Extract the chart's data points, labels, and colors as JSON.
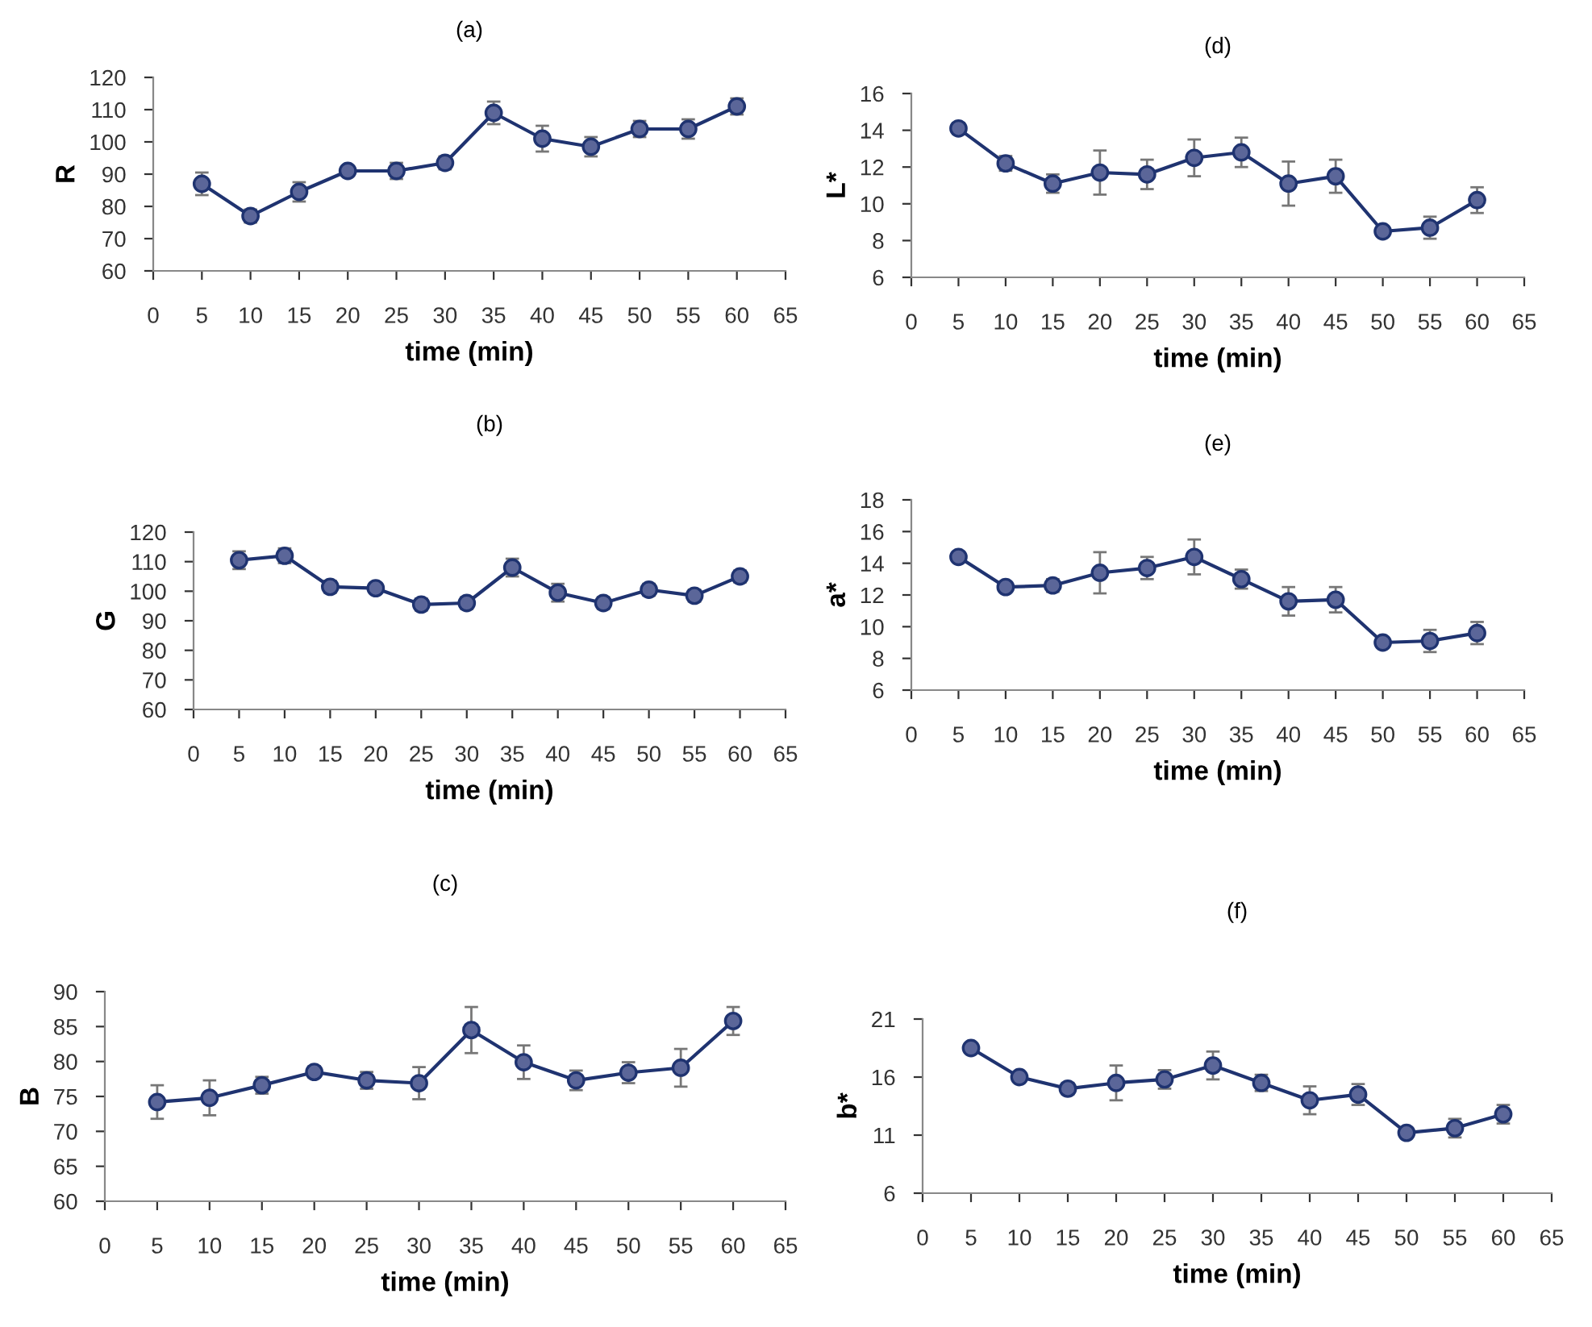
{
  "chart_data": [
    {
      "type": "line",
      "title": "(a)",
      "xlabel": "time (min)",
      "ylabel": "R",
      "x": [
        5,
        10,
        15,
        20,
        25,
        30,
        35,
        40,
        45,
        50,
        55,
        60
      ],
      "series": [
        {
          "color": "#1f3370",
          "values": [
            87,
            77,
            84.5,
            91,
            91,
            93.5,
            109,
            101,
            98.5,
            104,
            104,
            111
          ],
          "errors": [
            3.5,
            2,
            3,
            1.5,
            2.5,
            2,
            3.5,
            4,
            3,
            2.5,
            3,
            2.5
          ]
        }
      ],
      "xlim": [
        0,
        65
      ],
      "xticks": [
        0,
        5,
        10,
        15,
        20,
        25,
        30,
        35,
        40,
        45,
        50,
        55,
        60,
        65
      ],
      "ylim": [
        60,
        120
      ],
      "yticks": [
        60,
        70,
        80,
        90,
        100,
        110,
        120
      ],
      "marker": "circle",
      "line_style": "solid",
      "grid": false
    },
    {
      "type": "line",
      "title": "(b)",
      "xlabel": "time (min)",
      "ylabel": "G",
      "x": [
        5,
        10,
        15,
        20,
        25,
        30,
        35,
        40,
        45,
        50,
        55,
        60
      ],
      "series": [
        {
          "color": "#1f3370",
          "values": [
            110.5,
            112,
            101.5,
            101,
            95.5,
            96,
            108,
            99.5,
            96,
            100.5,
            98.5,
            105
          ],
          "errors": [
            3,
            2.5,
            2,
            1.5,
            2,
            2,
            3,
            3,
            2,
            2,
            2,
            2
          ]
        }
      ],
      "xlim": [
        0,
        65
      ],
      "xticks": [
        0,
        5,
        10,
        15,
        20,
        25,
        30,
        35,
        40,
        45,
        50,
        55,
        60,
        65
      ],
      "ylim": [
        60,
        120
      ],
      "yticks": [
        60,
        70,
        80,
        90,
        100,
        110,
        120
      ],
      "marker": "circle",
      "line_style": "solid",
      "grid": false
    },
    {
      "type": "line",
      "title": "(c)",
      "xlabel": "time (min)",
      "ylabel": "B",
      "x": [
        5,
        10,
        15,
        20,
        25,
        30,
        35,
        40,
        45,
        50,
        55,
        60
      ],
      "series": [
        {
          "color": "#1f3370",
          "values": [
            74.2,
            74.8,
            76.6,
            78.5,
            77.3,
            76.9,
            84.5,
            79.9,
            77.3,
            78.4,
            79.1,
            85.8
          ],
          "errors": [
            2.4,
            2.5,
            1.2,
            0.8,
            1.2,
            2.3,
            3.3,
            2.4,
            1.4,
            1.5,
            2.7,
            2
          ]
        }
      ],
      "xlim": [
        0,
        65
      ],
      "xticks": [
        0,
        5,
        10,
        15,
        20,
        25,
        30,
        35,
        40,
        45,
        50,
        55,
        60,
        65
      ],
      "ylim": [
        60,
        90
      ],
      "yticks": [
        60,
        65,
        70,
        75,
        80,
        85,
        90
      ],
      "marker": "circle",
      "line_style": "solid",
      "grid": false
    },
    {
      "type": "line",
      "title": "(d)",
      "xlabel": "time (min)",
      "ylabel": "L*",
      "x": [
        5,
        10,
        15,
        20,
        25,
        30,
        35,
        40,
        45,
        50,
        55,
        60
      ],
      "series": [
        {
          "color": "#1f3370",
          "values": [
            14.1,
            12.2,
            11.1,
            11.7,
            11.6,
            12.5,
            12.8,
            11.1,
            11.5,
            8.5,
            8.7,
            10.2
          ],
          "errors": [
            0.3,
            0.4,
            0.5,
            1.2,
            0.8,
            1,
            0.8,
            1.2,
            0.9,
            0.2,
            0.6,
            0.7
          ]
        }
      ],
      "xlim": [
        0,
        65
      ],
      "xticks": [
        0,
        5,
        10,
        15,
        20,
        25,
        30,
        35,
        40,
        45,
        50,
        55,
        60,
        65
      ],
      "ylim": [
        6,
        16
      ],
      "yticks": [
        6,
        8,
        10,
        12,
        14,
        16
      ],
      "marker": "circle",
      "line_style": "solid",
      "grid": false
    },
    {
      "type": "line",
      "title": "(e)",
      "xlabel": "time (min)",
      "ylabel": "a*",
      "x": [
        5,
        10,
        15,
        20,
        25,
        30,
        35,
        40,
        45,
        50,
        55,
        60
      ],
      "series": [
        {
          "color": "#1f3370",
          "values": [
            14.4,
            12.5,
            12.6,
            13.4,
            13.7,
            14.4,
            13,
            11.6,
            11.7,
            9,
            9.1,
            9.6
          ],
          "errors": [
            0.2,
            0.3,
            0.4,
            1.3,
            0.7,
            1.1,
            0.6,
            0.9,
            0.8,
            0.2,
            0.7,
            0.7
          ]
        }
      ],
      "xlim": [
        0,
        65
      ],
      "xticks": [
        0,
        5,
        10,
        15,
        20,
        25,
        30,
        35,
        40,
        45,
        50,
        55,
        60,
        65
      ],
      "ylim": [
        6,
        18
      ],
      "yticks": [
        6,
        8,
        10,
        12,
        14,
        16,
        18
      ],
      "marker": "circle",
      "line_style": "solid",
      "grid": false
    },
    {
      "type": "line",
      "title": "(f)",
      "xlabel": "time (min)",
      "ylabel": "b*",
      "x": [
        5,
        10,
        15,
        20,
        25,
        30,
        35,
        40,
        45,
        50,
        55,
        60
      ],
      "series": [
        {
          "color": "#1f3370",
          "values": [
            18.5,
            16,
            15,
            15.5,
            15.8,
            17,
            15.5,
            14,
            14.5,
            11.2,
            11.6,
            12.8
          ],
          "errors": [
            0.3,
            0.3,
            0.5,
            1.5,
            0.8,
            1.2,
            0.7,
            1.2,
            0.9,
            0.3,
            0.8,
            0.8
          ]
        }
      ],
      "xlim": [
        0,
        65
      ],
      "xticks": [
        0,
        5,
        10,
        15,
        20,
        25,
        30,
        35,
        40,
        45,
        50,
        55,
        60,
        65
      ],
      "ylim": [
        6,
        21
      ],
      "yticks": [
        6,
        11,
        16,
        21
      ],
      "marker": "circle",
      "line_style": "solid",
      "grid": false
    }
  ]
}
